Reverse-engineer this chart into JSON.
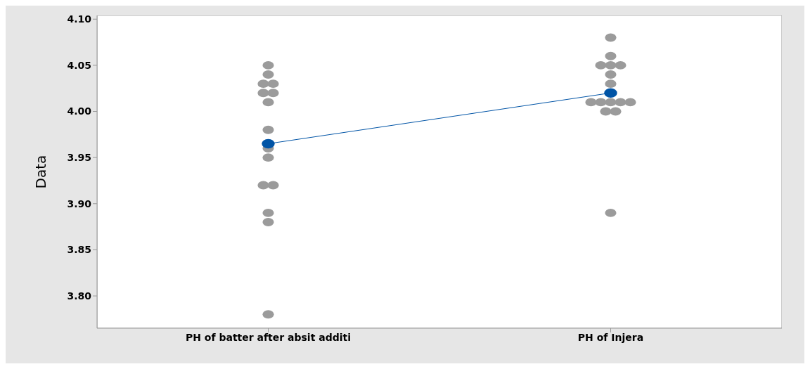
{
  "chart_data": {
    "type": "scatter",
    "ylabel": "Data",
    "categories": [
      "PH of batter after absit additi",
      "PH of Injera"
    ],
    "series": [
      {
        "color": "#9b9b9b",
        "x": [
          "PH of batter after absit additi",
          "PH of batter after absit additi",
          "PH of batter after absit additi",
          "PH of batter after absit additi",
          "PH of batter after absit additi",
          "PH of batter after absit additi",
          "PH of batter after absit additi",
          "PH of batter after absit additi",
          "PH of batter after absit additi",
          "PH of batter after absit additi",
          "PH of batter after absit additi",
          "PH of batter after absit additi",
          "PH of batter after absit additi",
          "PH of batter after absit additi",
          "PH of batter after absit additi",
          "PH of Injera",
          "PH of Injera",
          "PH of Injera",
          "PH of Injera",
          "PH of Injera",
          "PH of Injera",
          "PH of Injera",
          "PH of Injera",
          "PH of Injera",
          "PH of Injera",
          "PH of Injera",
          "PH of Injera",
          "PH of Injera",
          "PH of Injera",
          "PH of Injera"
        ],
        "values": [
          4.05,
          4.04,
          4.03,
          4.03,
          4.02,
          4.02,
          4.01,
          3.98,
          3.96,
          3.95,
          3.92,
          3.92,
          3.89,
          3.88,
          3.78,
          4.08,
          4.06,
          4.05,
          4.05,
          4.05,
          4.04,
          4.03,
          4.01,
          4.01,
          4.01,
          4.01,
          4.01,
          4.0,
          4.0,
          3.89
        ]
      },
      {
        "type": "line",
        "color": "#0054a6",
        "values": [
          3.965,
          4.02
        ]
      }
    ],
    "marker": "circle",
    "ylim": [
      3.765,
      4.104
    ],
    "yticks": [
      {
        "value": 3.8,
        "label": "3.80"
      },
      {
        "value": 3.85,
        "label": "3.85"
      },
      {
        "value": 3.9,
        "label": "3.90"
      },
      {
        "value": 3.95,
        "label": "3.95"
      },
      {
        "value": 4.0,
        "label": "4.00"
      },
      {
        "value": 4.05,
        "label": "4.05"
      },
      {
        "value": 4.1,
        "label": "4.10"
      }
    ]
  }
}
